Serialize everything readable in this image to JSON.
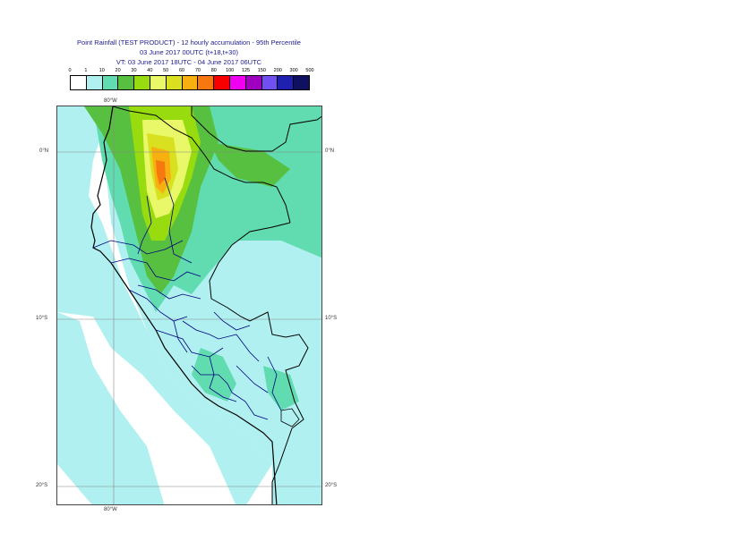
{
  "title": {
    "line1": "Point Rainfall (TEST PRODUCT) - 12 hourly accumulation - 95th Percentile",
    "line2": "03 June 2017 00UTC (t+18,t+30)",
    "line3": "VT: 03 June 2017 18UTC - 04 June 2017 06UTC"
  },
  "legend": {
    "labels": [
      "0",
      "1",
      "10",
      "20",
      "30",
      "40",
      "50",
      "60",
      "70",
      "80",
      "100",
      "125",
      "150",
      "200",
      "300",
      "500"
    ],
    "colors": [
      "#ffffff",
      "#b0f0f0",
      "#60dcb0",
      "#58c040",
      "#98dc10",
      "#e8f868",
      "#d8e020",
      "#f8b010",
      "#f87810",
      "#f80000",
      "#f000f0",
      "#a000c0",
      "#7050f0",
      "#2020b0",
      "#101060"
    ]
  },
  "map": {
    "lon_top": "80°W",
    "lon_bottom": "80°W",
    "lat_left": [
      "0°N",
      "10°S",
      "20°S"
    ],
    "lat_right": [
      "0°N",
      "10°S",
      "20°S"
    ],
    "colors": {
      "light": "#b0f0f0",
      "mid": "#60dcb0",
      "green": "#58c040",
      "lime": "#98dc10",
      "yellow": "#e8f868",
      "olive": "#d8e020",
      "orange": "#f8b010",
      "darkorange": "#f87810",
      "ocean": "#ffffff",
      "coast": "#000000",
      "border": "#000080"
    }
  }
}
